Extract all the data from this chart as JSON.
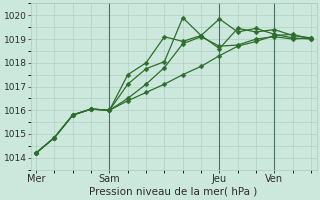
{
  "xlabel": "Pression niveau de la mer( hPa )",
  "bg_color": "#cce8dc",
  "grid_color": "#aaccbb",
  "line_color": "#2d6e2d",
  "vline_color": "#4a7060",
  "ylim": [
    1013.5,
    1020.5
  ],
  "xlim": [
    -0.3,
    15.3
  ],
  "xtick_labels": [
    "Mer",
    "Sam",
    "Jeu",
    "Ven"
  ],
  "xtick_positions": [
    0,
    4,
    10,
    13
  ],
  "ytick_values": [
    1014,
    1015,
    1016,
    1017,
    1018,
    1019,
    1020
  ],
  "series": [
    [
      1014.2,
      1014.85,
      1015.8,
      1016.05,
      1016.0,
      1016.5,
      1017.1,
      1017.8,
      1018.8,
      1019.1,
      1018.7,
      1018.75,
      1019.0,
      1019.1,
      1019.0,
      1019.05
    ],
    [
      1014.2,
      1014.85,
      1015.8,
      1016.05,
      1016.0,
      1017.5,
      1018.0,
      1019.1,
      1018.9,
      1019.15,
      1019.85,
      1019.3,
      1019.45,
      1019.2,
      1019.05,
      1019.0
    ],
    [
      1014.2,
      1014.85,
      1015.8,
      1016.05,
      1016.0,
      1017.1,
      1017.75,
      1018.05,
      1019.9,
      1019.15,
      1018.6,
      1019.45,
      1019.3,
      1019.4,
      1019.15,
      1019.05
    ],
    [
      1014.2,
      1014.85,
      1015.8,
      1016.05,
      1016.0,
      1016.4,
      1016.75,
      1017.1,
      1017.5,
      1017.85,
      1018.3,
      1018.7,
      1018.9,
      1019.15,
      1019.2,
      1019.0
    ]
  ],
  "vline_positions": [
    4,
    10,
    13
  ],
  "markersize": 2.5,
  "linewidth": 0.9,
  "ylabel_fontsize": 7,
  "xlabel_fontsize": 7.5,
  "ytick_fontsize": 6.5,
  "xtick_fontsize": 7
}
